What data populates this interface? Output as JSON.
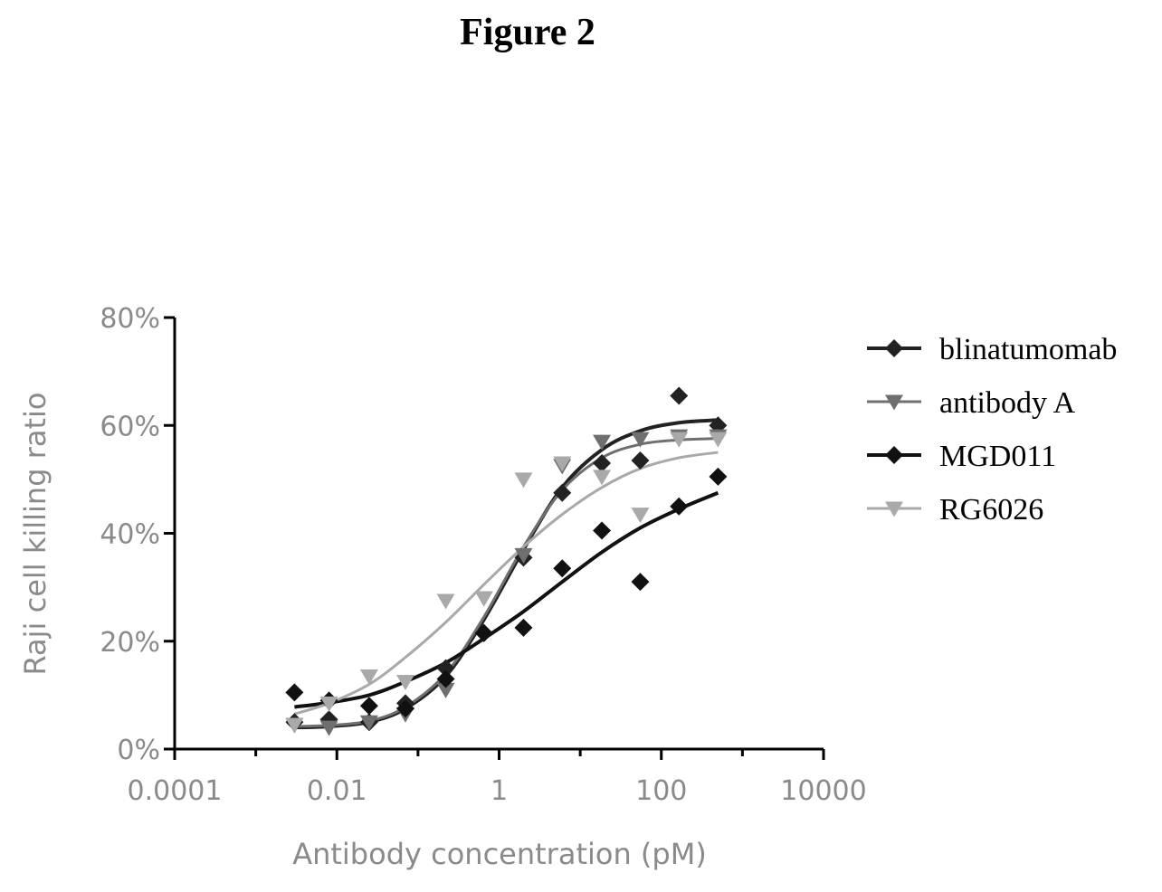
{
  "figure_title": "Figure 2",
  "colors": {
    "blinatumomab": "#222222",
    "antibody_a": "#6f6f6f",
    "mgd011": "#111111",
    "rg6026": "#a9a9a9",
    "axis": "#000000",
    "tick_text": "#8a8a8a"
  },
  "chart_data": {
    "type": "scatter",
    "title": "",
    "xlabel": "Antibody concentration (pM)",
    "ylabel": "Raji cell killing ratio",
    "x_scale": "log10",
    "xlim": [
      0.0001,
      10000
    ],
    "ylim": [
      0,
      80
    ],
    "x_ticks": [
      "0.0001",
      "0.01",
      "1",
      "100",
      "10000"
    ],
    "y_ticks": [
      "0%",
      "20%",
      "40%",
      "60%",
      "80%"
    ],
    "legend_position": "right",
    "grid": false,
    "x": [
      0.003,
      0.008,
      0.025,
      0.07,
      0.22,
      0.65,
      2.0,
      6.0,
      18.5,
      55,
      165,
      500
    ],
    "series": [
      {
        "name": "blinatumomab",
        "marker": "diamond",
        "color_key": "blinatumomab",
        "values": [
          5.0,
          5.5,
          5.0,
          8.5,
          15.0,
          21.5,
          35.5,
          47.5,
          53.0,
          53.5,
          65.5,
          60.0
        ],
        "fit": [
          4.0,
          4.2,
          5.0,
          7.5,
          13.5,
          24.0,
          37.0,
          48.5,
          55.5,
          59.0,
          60.5,
          61.0
        ]
      },
      {
        "name": "antibody A",
        "marker": "triangle-down",
        "color_key": "antibody_a",
        "values": [
          4.5,
          4.0,
          5.0,
          6.5,
          11.0,
          28.0,
          36.0,
          52.5,
          57.0,
          57.5,
          58.0,
          58.0
        ],
        "fit": [
          4.2,
          4.4,
          5.2,
          7.8,
          14.0,
          24.5,
          37.5,
          48.0,
          54.0,
          56.5,
          57.3,
          57.6
        ]
      },
      {
        "name": "MGD011",
        "marker": "diamond",
        "color_key": "mgd011",
        "values": [
          10.5,
          9.0,
          8.0,
          7.5,
          13.0,
          21.5,
          22.5,
          33.5,
          40.5,
          31.0,
          45.0,
          50.5
        ],
        "fit": [
          7.8,
          8.6,
          10.0,
          12.5,
          16.0,
          20.5,
          25.5,
          31.0,
          36.5,
          41.0,
          44.5,
          47.5
        ]
      },
      {
        "name": "RG6026",
        "marker": "triangle-down",
        "color_key": "rg6026",
        "values": [
          4.5,
          8.5,
          13.5,
          12.5,
          27.5,
          28.0,
          50.0,
          53.0,
          50.5,
          43.5,
          57.5,
          57.5
        ],
        "fit": [
          6.5,
          8.5,
          12.0,
          17.0,
          23.5,
          30.5,
          37.5,
          43.5,
          48.5,
          52.0,
          54.0,
          55.0
        ]
      }
    ]
  }
}
